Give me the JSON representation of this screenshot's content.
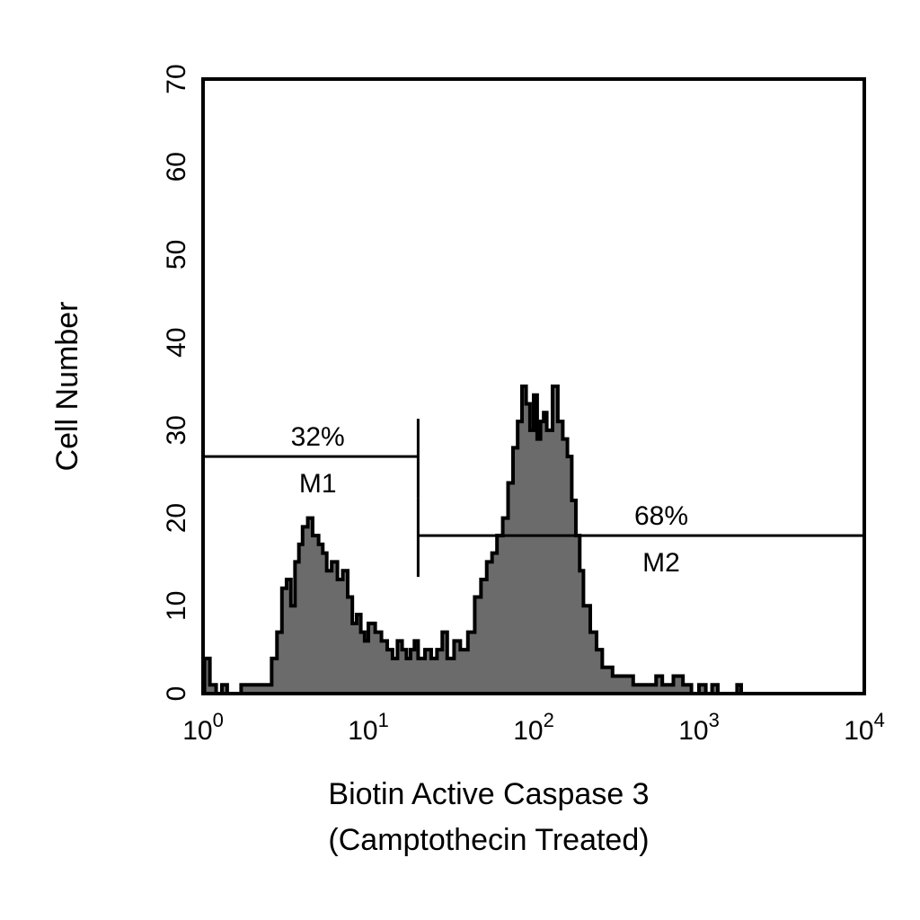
{
  "chart_data": {
    "type": "histogram",
    "x_scale": "log",
    "xlim": [
      1,
      10000
    ],
    "ylim": [
      0,
      70
    ],
    "x_ticks": [
      {
        "base": "10",
        "exp": "0",
        "value": 1
      },
      {
        "base": "10",
        "exp": "1",
        "value": 10
      },
      {
        "base": "10",
        "exp": "2",
        "value": 100
      },
      {
        "base": "10",
        "exp": "3",
        "value": 1000
      },
      {
        "base": "10",
        "exp": "4",
        "value": 10000
      }
    ],
    "y_ticks": [
      "0",
      "10",
      "20",
      "30",
      "40",
      "50",
      "60",
      "70"
    ],
    "xlabel_line1": "Biotin Active Caspase 3",
    "xlabel_line2": "(Camptothecin Treated)",
    "ylabel": "Cell Number",
    "grid": false,
    "histogram": {
      "x": [
        1.02,
        1.1,
        1.2,
        1.3,
        1.4,
        1.5,
        1.6,
        1.7,
        1.8,
        1.9,
        2.0,
        2.2,
        2.4,
        2.6,
        2.8,
        3.0,
        3.2,
        3.4,
        3.6,
        3.8,
        4.0,
        4.3,
        4.6,
        5.0,
        5.3,
        5.6,
        6.0,
        6.5,
        7.0,
        7.5,
        8.0,
        8.5,
        9.0,
        9.5,
        10,
        11,
        12,
        13,
        14,
        15,
        16,
        17,
        18,
        19,
        20,
        22,
        24,
        26,
        28,
        30,
        33,
        36,
        40,
        44,
        48,
        52,
        56,
        60,
        65,
        70,
        75,
        80,
        85,
        90,
        95,
        100,
        105,
        110,
        115,
        120,
        130,
        140,
        150,
        160,
        170,
        180,
        190,
        200,
        220,
        240,
        260,
        280,
        300,
        330,
        360,
        400,
        450,
        500,
        550,
        600,
        700,
        800,
        900,
        1000,
        1100,
        1200,
        1300,
        1500,
        1700,
        1800,
        1900,
        2000
      ],
      "y": [
        4,
        1,
        0,
        1,
        0,
        0,
        0,
        1,
        1,
        1,
        1,
        1,
        1,
        4,
        7,
        12,
        13,
        10,
        15,
        17,
        19,
        20,
        18,
        17,
        16,
        14,
        15,
        13,
        14,
        11,
        8,
        9,
        7,
        6,
        8,
        7,
        6,
        5,
        4,
        6,
        5,
        4,
        5,
        6,
        4,
        5,
        4,
        5,
        7,
        4,
        6,
        5,
        7,
        11,
        13,
        15,
        16,
        18,
        20,
        24,
        28,
        31,
        35,
        33,
        30,
        34,
        29,
        31,
        32,
        30,
        35,
        31,
        29,
        27,
        22,
        18,
        14,
        10,
        7,
        5,
        3,
        3,
        2,
        2,
        2,
        1,
        1,
        1,
        2,
        1,
        2,
        1,
        0,
        1,
        0,
        1,
        0,
        0,
        1,
        0,
        0
      ]
    },
    "markers": [
      {
        "name": "M1",
        "percent": "32%",
        "x_start": 1,
        "x_end": 20,
        "y": 27
      },
      {
        "name": "M2",
        "percent": "68%",
        "x_start": 20,
        "x_end": 10000,
        "y": 18
      }
    ],
    "colors": {
      "fill": "#6b6b6b",
      "outline": "#000000",
      "axis": "#000000"
    }
  }
}
